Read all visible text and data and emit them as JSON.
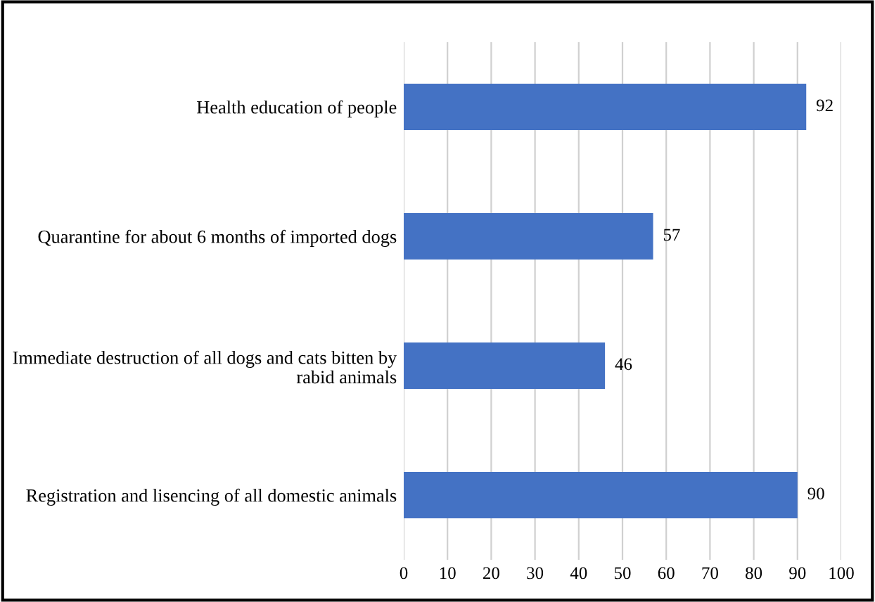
{
  "chart_data": {
    "type": "bar",
    "orientation": "horizontal",
    "categories": [
      "Health education of people",
      "Quarantine for about 6 months of imported dogs",
      "Immediate destruction of all dogs and cats bitten by\nrabid animals",
      "Registration and lisencing of all domestic animals"
    ],
    "values": [
      92,
      57,
      46,
      90
    ],
    "color": "#4472c4",
    "xlim": [
      0,
      100
    ],
    "xticks": [
      0,
      10,
      20,
      30,
      40,
      50,
      60,
      70,
      80,
      90,
      100
    ],
    "grid": "x",
    "data_labels": true
  }
}
